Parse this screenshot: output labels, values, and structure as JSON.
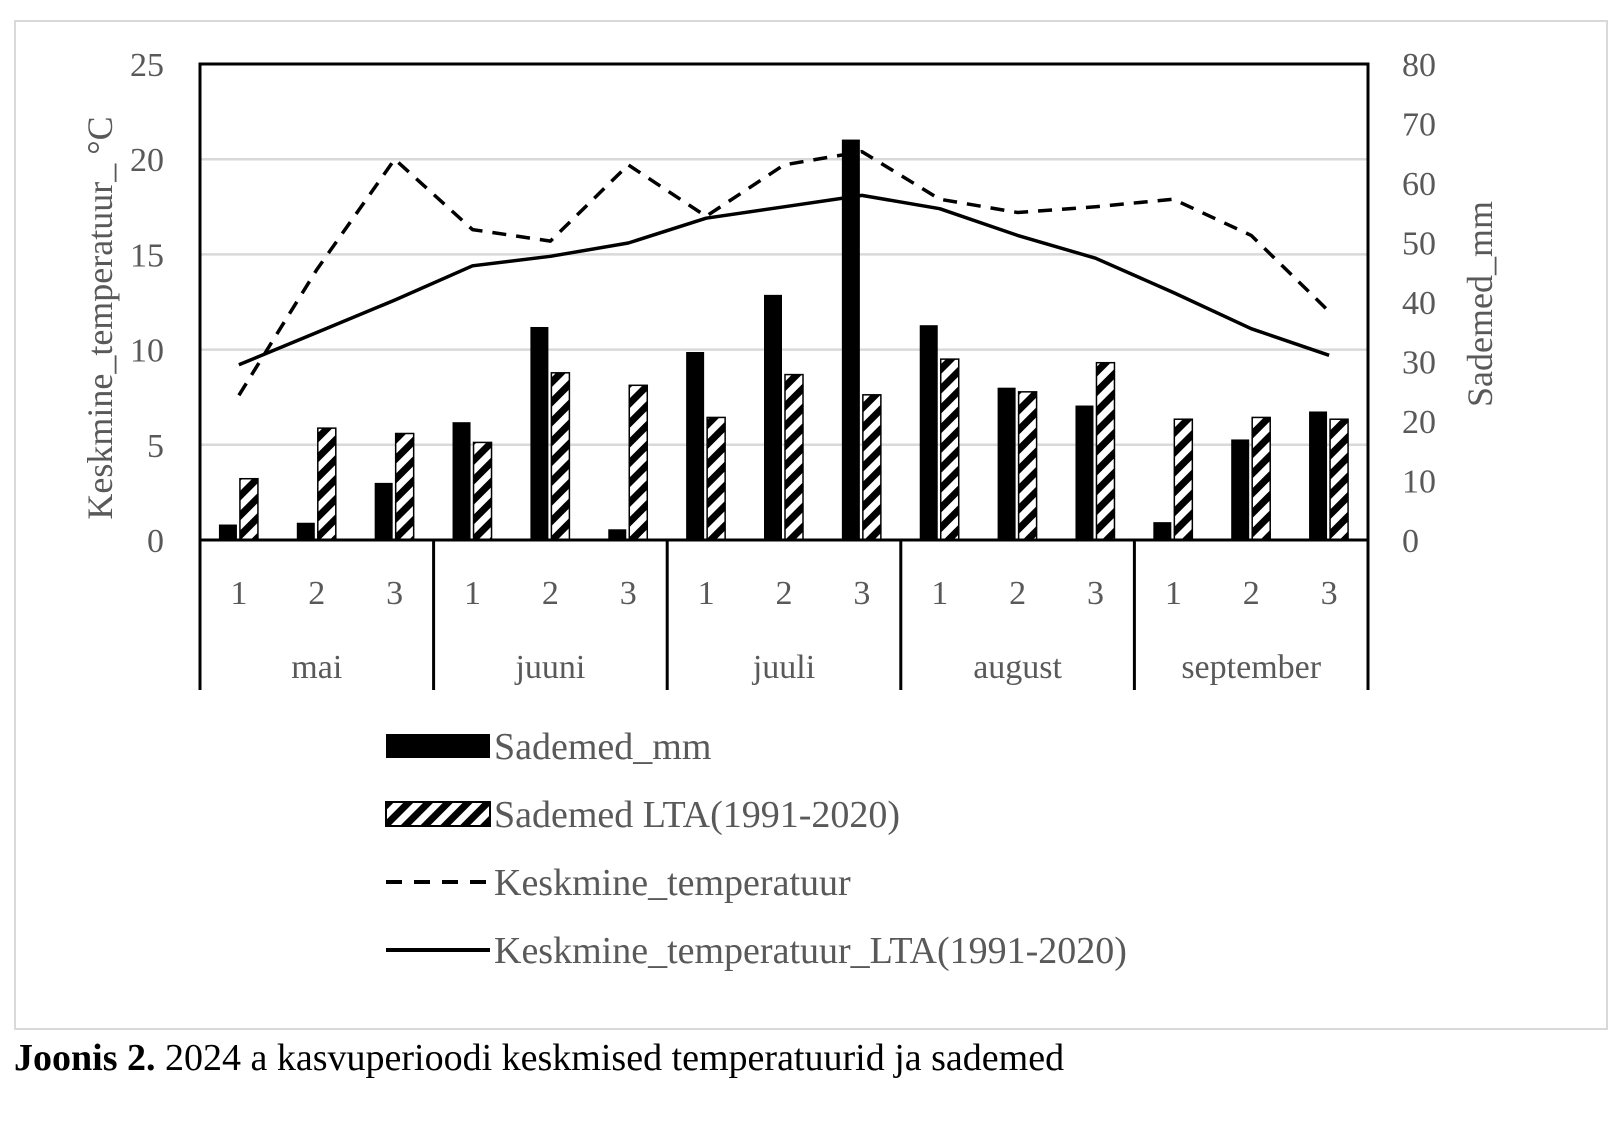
{
  "caption": {
    "label": "Joonis 2.",
    "text": " 2024 a kasvuperioodi keskmised temperatuurid ja sademed"
  },
  "chart_data": {
    "type": "bar",
    "categories": [
      "1",
      "2",
      "3",
      "1",
      "2",
      "3",
      "1",
      "2",
      "3",
      "1",
      "2",
      "3",
      "1",
      "2",
      "3"
    ],
    "groups": [
      "mai",
      "juuni",
      "juuli",
      "august",
      "september"
    ],
    "y_left": {
      "label": "Keskmine_temperatuur_ °C",
      "range": [
        0,
        25
      ],
      "ticks": [
        0,
        5,
        10,
        15,
        20,
        25
      ]
    },
    "y_right": {
      "label": "Sademed_mm",
      "range": [
        0,
        80
      ],
      "ticks": [
        0,
        10,
        20,
        30,
        40,
        50,
        60,
        70,
        80
      ]
    },
    "grid": true,
    "legend_position": "bottom",
    "series": [
      {
        "name": "Sademed_mm",
        "kind": "bar",
        "axis": "right",
        "style": "solid",
        "values": [
          2.6,
          2.9,
          9.6,
          19.8,
          35.8,
          1.8,
          31.6,
          41.2,
          67.3,
          36.1,
          25.6,
          22.6,
          3.0,
          16.9,
          21.6
        ]
      },
      {
        "name": "Sademed LTA(1991-2020)",
        "kind": "bar",
        "axis": "right",
        "style": "hatched",
        "values": [
          10.3,
          18.8,
          17.9,
          16.4,
          28.1,
          26.0,
          20.6,
          27.8,
          24.4,
          30.4,
          24.9,
          29.8,
          20.3,
          20.6,
          20.3
        ]
      },
      {
        "name": "Keskmine_temperatuur",
        "kind": "line",
        "axis": "left",
        "style": "dashed",
        "values": [
          7.6,
          14.2,
          20.0,
          16.3,
          15.7,
          19.7,
          17.0,
          19.7,
          20.4,
          17.9,
          17.2,
          17.5,
          17.9,
          16.0,
          12.0
        ]
      },
      {
        "name": "Keskmine_temperatuur_LTA(1991-2020)",
        "kind": "line",
        "axis": "left",
        "style": "solid",
        "values": [
          9.2,
          10.9,
          12.6,
          14.4,
          14.9,
          15.6,
          16.9,
          17.5,
          18.1,
          17.4,
          16.0,
          14.8,
          13.0,
          11.1,
          9.7
        ]
      }
    ]
  }
}
